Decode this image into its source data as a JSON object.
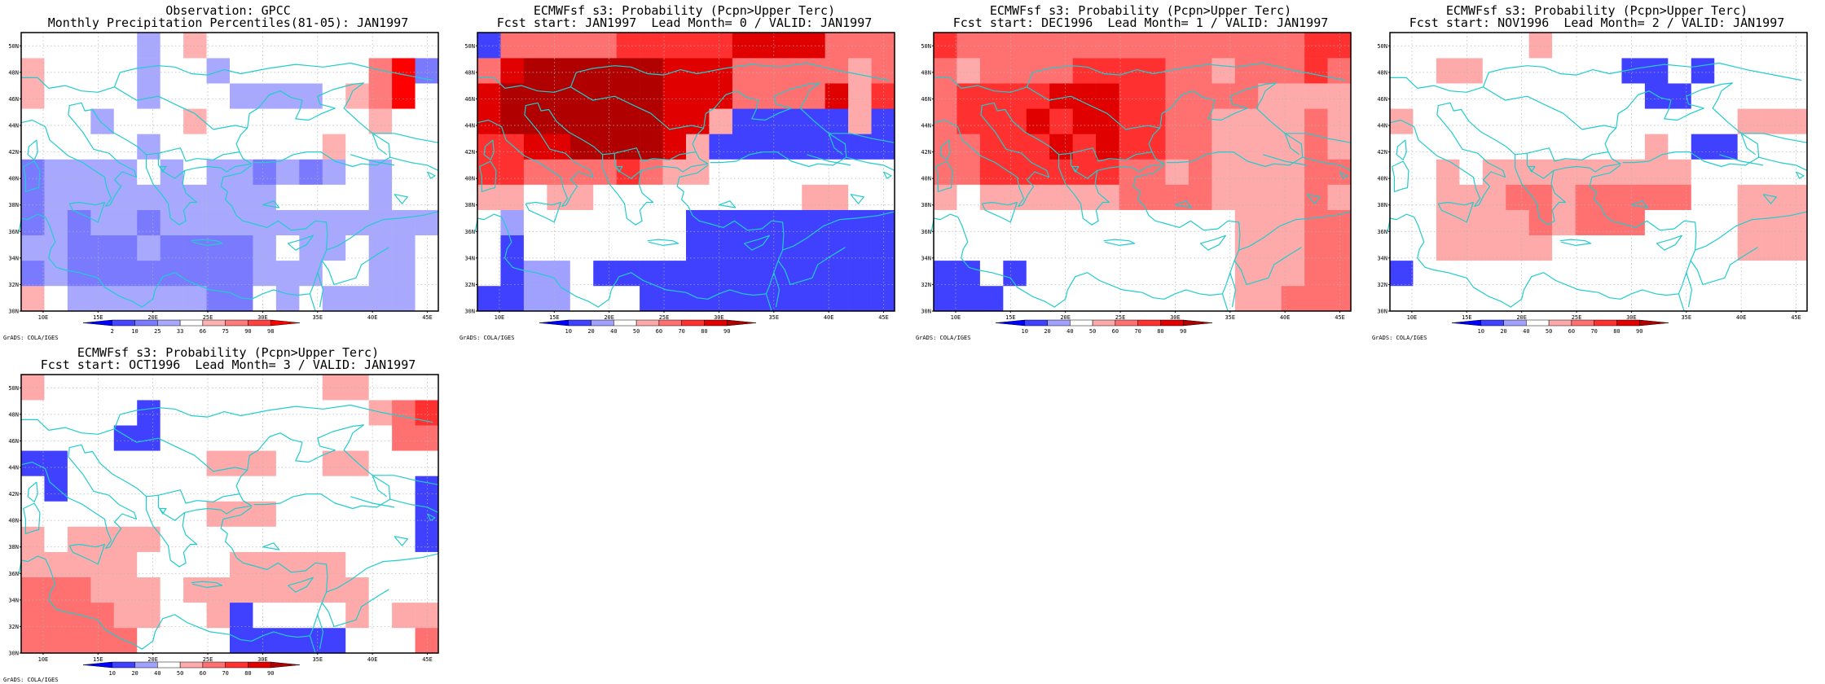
{
  "colors": {
    "frame": "#000000",
    "coast": "#22cccc",
    "grid": "#b4b4b4"
  },
  "lat_labels": [
    "30N",
    "32N",
    "34N",
    "36N",
    "38N",
    "40N",
    "42N",
    "44N",
    "46N",
    "48N",
    "50N"
  ],
  "lon_labels": [
    "10E",
    "15E",
    "20E",
    "25E",
    "30E",
    "35E",
    "40E",
    "45E"
  ],
  "credit": "GrADS: COLA/IGES",
  "obs_legend": {
    "ticks": [
      "2",
      "10",
      "25",
      "33",
      "66",
      "75",
      "90",
      "98"
    ],
    "colors": [
      "#0000ff",
      "#4545ff",
      "#7a7aff",
      "#a8a8ff",
      "#ffffff",
      "#ffb0b0",
      "#ff7a7a",
      "#ff4040",
      "#ff0000"
    ]
  },
  "prob_legend": {
    "ticks": [
      "10",
      "20",
      "40",
      "50",
      "60",
      "70",
      "80",
      "90"
    ],
    "colors": [
      "#0000ff",
      "#4040ff",
      "#a0a0ff",
      "#ffffff",
      "#ffaaaa",
      "#ff7070",
      "#ff3030",
      "#e00000",
      "#b00000"
    ]
  },
  "panels": [
    {
      "title1": "Observation: GPCC",
      "title2": "Monthly Precipitation Percentiles(81-05): JAN1997",
      "legend": "obs",
      "grid": [
        [
          5,
          4,
          3,
          3,
          3,
          3,
          3,
          3,
          2,
          2,
          4,
          3,
          4,
          3,
          3,
          3,
          3,
          4
        ],
        [
          2,
          3,
          2,
          2,
          2,
          2,
          2,
          2,
          2,
          2,
          3,
          3,
          3,
          4,
          4,
          3,
          3,
          4
        ],
        [
          3,
          3,
          2,
          2,
          2,
          3,
          2,
          2,
          2,
          2,
          3,
          4,
          3,
          3,
          4,
          3,
          3,
          4
        ],
        [
          2,
          3,
          2,
          3,
          3,
          2,
          3,
          3,
          3,
          3,
          3,
          3,
          3,
          3,
          3,
          3,
          3,
          3
        ],
        [
          2,
          3,
          3,
          3,
          3,
          3,
          3,
          3,
          3,
          3,
          3,
          4,
          4,
          4,
          4,
          3,
          4,
          4
        ],
        [
          2,
          3,
          3,
          3,
          3,
          4,
          3,
          4,
          3,
          3,
          2,
          3,
          2,
          3,
          4,
          3,
          4,
          4
        ],
        [
          4,
          4,
          4,
          4,
          4,
          3,
          4,
          4,
          4,
          4,
          4,
          4,
          4,
          5,
          4,
          4,
          4,
          4
        ],
        [
          4,
          4,
          4,
          3,
          4,
          4,
          4,
          5,
          4,
          4,
          4,
          4,
          4,
          4,
          4,
          5,
          4,
          4
        ],
        [
          5,
          4,
          4,
          4,
          4,
          3,
          4,
          4,
          4,
          3,
          3,
          3,
          3,
          4,
          5,
          6,
          8,
          4
        ],
        [
          5,
          4,
          4,
          4,
          4,
          3,
          4,
          4,
          3,
          4,
          4,
          4,
          4,
          4,
          4,
          6,
          8,
          2
        ],
        [
          4,
          4,
          4,
          4,
          4,
          3,
          4,
          5,
          4,
          4,
          4,
          4,
          4,
          4,
          4,
          4,
          4,
          4
        ]
      ]
    },
    {
      "title1": "ECMWFsf s3: Probability (Pcpn>Upper Terc)",
      "title2": "Fcst start: JAN1997  Lead Month= 0 / VALID: JAN1997",
      "legend": "prob",
      "grid": [
        [
          1,
          1,
          2,
          2,
          3,
          3,
          3,
          1,
          1,
          1,
          1,
          1,
          1,
          1,
          1,
          1,
          1,
          1
        ],
        [
          3,
          1,
          2,
          2,
          3,
          1,
          1,
          1,
          1,
          1,
          1,
          1,
          1,
          1,
          1,
          1,
          1,
          1
        ],
        [
          3,
          1,
          3,
          3,
          3,
          3,
          3,
          3,
          3,
          1,
          1,
          1,
          1,
          1,
          1,
          1,
          1,
          1
        ],
        [
          3,
          2,
          3,
          3,
          3,
          3,
          3,
          3,
          3,
          1,
          1,
          1,
          1,
          1,
          1,
          1,
          1,
          1
        ],
        [
          4,
          4,
          3,
          4,
          4,
          3,
          3,
          3,
          3,
          3,
          3,
          3,
          3,
          3,
          4,
          4,
          3,
          3
        ],
        [
          6,
          6,
          5,
          5,
          5,
          5,
          6,
          5,
          4,
          4,
          3,
          3,
          3,
          3,
          3,
          3,
          3,
          3
        ],
        [
          6,
          6,
          7,
          7,
          8,
          8,
          8,
          8,
          7,
          4,
          1,
          1,
          1,
          1,
          1,
          1,
          1,
          1
        ],
        [
          7,
          8,
          8,
          8,
          8,
          8,
          8,
          8,
          7,
          7,
          4,
          1,
          1,
          1,
          1,
          1,
          4,
          1
        ],
        [
          7,
          8,
          8,
          8,
          8,
          8,
          8,
          8,
          7,
          7,
          7,
          5,
          5,
          5,
          5,
          7,
          4,
          6
        ],
        [
          5,
          7,
          8,
          8,
          8,
          8,
          8,
          8,
          7,
          7,
          7,
          5,
          5,
          5,
          5,
          5,
          4,
          5
        ],
        [
          1,
          5,
          5,
          5,
          5,
          5,
          6,
          6,
          6,
          6,
          6,
          7,
          7,
          7,
          7,
          5,
          5,
          5
        ]
      ]
    },
    {
      "title1": "ECMWFsf s3: Probability (Pcpn>Upper Terc)",
      "title2": "Fcst start: DEC1996  Lead Month= 1 / VALID: JAN1997",
      "legend": "prob",
      "grid": [
        [
          1,
          1,
          1,
          3,
          3,
          3,
          3,
          3,
          3,
          3,
          3,
          3,
          3,
          4,
          4,
          5,
          5,
          5
        ],
        [
          1,
          1,
          3,
          1,
          3,
          3,
          3,
          3,
          3,
          3,
          3,
          3,
          3,
          4,
          4,
          4,
          5,
          5
        ],
        [
          3,
          3,
          3,
          3,
          3,
          3,
          3,
          3,
          3,
          3,
          3,
          3,
          3,
          4,
          4,
          4,
          5,
          5
        ],
        [
          3,
          3,
          3,
          3,
          3,
          3,
          3,
          3,
          3,
          3,
          3,
          3,
          3,
          4,
          4,
          4,
          5,
          5
        ],
        [
          4,
          3,
          4,
          4,
          4,
          4,
          4,
          4,
          5,
          5,
          5,
          5,
          4,
          4,
          4,
          4,
          5,
          4
        ],
        [
          5,
          5,
          6,
          6,
          6,
          6,
          6,
          6,
          5,
          5,
          4,
          5,
          4,
          4,
          4,
          4,
          5,
          5
        ],
        [
          5,
          5,
          6,
          6,
          6,
          7,
          6,
          7,
          6,
          6,
          5,
          5,
          4,
          4,
          4,
          4,
          5,
          4
        ],
        [
          5,
          6,
          6,
          6,
          7,
          6,
          7,
          7,
          6,
          6,
          5,
          5,
          4,
          4,
          4,
          4,
          5,
          4
        ],
        [
          5,
          6,
          6,
          6,
          6,
          7,
          7,
          7,
          6,
          6,
          5,
          5,
          5,
          5,
          4,
          4,
          4,
          4
        ],
        [
          5,
          4,
          5,
          5,
          5,
          5,
          6,
          6,
          6,
          6,
          5,
          5,
          4,
          5,
          5,
          5,
          6,
          5
        ],
        [
          6,
          5,
          5,
          5,
          5,
          5,
          5,
          5,
          5,
          5,
          5,
          5,
          5,
          5,
          5,
          5,
          6,
          6
        ]
      ]
    },
    {
      "title1": "ECMWFsf s3: Probability (Pcpn>Upper Terc)",
      "title2": "Fcst start: NOV1996  Lead Month= 2 / VALID: JAN1997",
      "legend": "prob",
      "grid": [
        [
          3,
          3,
          3,
          3,
          3,
          3,
          3,
          3,
          3,
          3,
          3,
          3,
          3,
          3,
          3,
          3,
          3,
          3
        ],
        [
          1,
          3,
          3,
          3,
          3,
          3,
          3,
          3,
          3,
          3,
          3,
          3,
          3,
          3,
          3,
          3,
          3,
          3
        ],
        [
          3,
          3,
          4,
          4,
          4,
          4,
          4,
          3,
          3,
          3,
          3,
          3,
          3,
          3,
          3,
          4,
          4,
          4
        ],
        [
          3,
          3,
          4,
          4,
          4,
          4,
          5,
          4,
          5,
          5,
          5,
          3,
          3,
          3,
          3,
          4,
          4,
          4
        ],
        [
          3,
          3,
          4,
          4,
          4,
          5,
          5,
          4,
          5,
          5,
          5,
          5,
          5,
          3,
          3,
          4,
          4,
          4
        ],
        [
          3,
          3,
          4,
          3,
          4,
          4,
          4,
          4,
          4,
          4,
          4,
          4,
          4,
          3,
          3,
          3,
          3,
          3
        ],
        [
          3,
          3,
          3,
          3,
          3,
          3,
          3,
          3,
          3,
          3,
          3,
          4,
          3,
          1,
          1,
          3,
          3,
          3
        ],
        [
          4,
          3,
          3,
          3,
          3,
          3,
          3,
          3,
          3,
          3,
          3,
          3,
          3,
          3,
          3,
          4,
          4,
          4
        ],
        [
          3,
          3,
          3,
          3,
          3,
          3,
          3,
          3,
          3,
          3,
          3,
          1,
          1,
          3,
          3,
          3,
          3,
          3
        ],
        [
          3,
          3,
          4,
          4,
          3,
          3,
          3,
          3,
          3,
          3,
          1,
          1,
          3,
          1,
          3,
          3,
          3,
          3
        ],
        [
          3,
          3,
          3,
          3,
          3,
          3,
          4,
          3,
          3,
          3,
          3,
          3,
          3,
          3,
          3,
          3,
          3,
          3
        ]
      ]
    },
    {
      "title1": "ECMWFsf s3: Probability (Pcpn>Upper Terc)",
      "title2": "Fcst start: OCT1996  Lead Month= 3 / VALID: JAN1997",
      "legend": "prob",
      "grid": [
        [
          5,
          5,
          5,
          5,
          5,
          3,
          3,
          3,
          3,
          1,
          1,
          1,
          1,
          1,
          3,
          3,
          3,
          5
        ],
        [
          5,
          5,
          5,
          5,
          4,
          4,
          3,
          3,
          4,
          1,
          3,
          3,
          3,
          3,
          4,
          3,
          4,
          4
        ],
        [
          5,
          5,
          5,
          4,
          4,
          4,
          3,
          4,
          4,
          4,
          4,
          4,
          4,
          4,
          4,
          3,
          3,
          3
        ],
        [
          4,
          4,
          4,
          4,
          4,
          3,
          3,
          3,
          3,
          4,
          4,
          4,
          4,
          4,
          3,
          3,
          3,
          3
        ],
        [
          4,
          3,
          4,
          4,
          4,
          4,
          3,
          3,
          3,
          3,
          3,
          3,
          3,
          3,
          3,
          3,
          3,
          1
        ],
        [
          3,
          3,
          3,
          3,
          3,
          3,
          3,
          3,
          4,
          4,
          4,
          3,
          3,
          3,
          3,
          3,
          3,
          1
        ],
        [
          3,
          1,
          3,
          3,
          3,
          3,
          3,
          3,
          3,
          3,
          3,
          3,
          3,
          3,
          3,
          3,
          3,
          1
        ],
        [
          1,
          1,
          3,
          3,
          3,
          3,
          3,
          3,
          4,
          4,
          4,
          3,
          3,
          4,
          4,
          3,
          3,
          3
        ],
        [
          3,
          3,
          3,
          3,
          1,
          1,
          3,
          3,
          3,
          3,
          3,
          3,
          3,
          3,
          3,
          3,
          5,
          5
        ],
        [
          3,
          3,
          3,
          3,
          3,
          1,
          3,
          3,
          3,
          3,
          3,
          3,
          3,
          3,
          3,
          4,
          5,
          6
        ],
        [
          4,
          3,
          3,
          3,
          3,
          3,
          3,
          3,
          3,
          3,
          3,
          3,
          3,
          4,
          4,
          3,
          3,
          3
        ]
      ]
    }
  ]
}
